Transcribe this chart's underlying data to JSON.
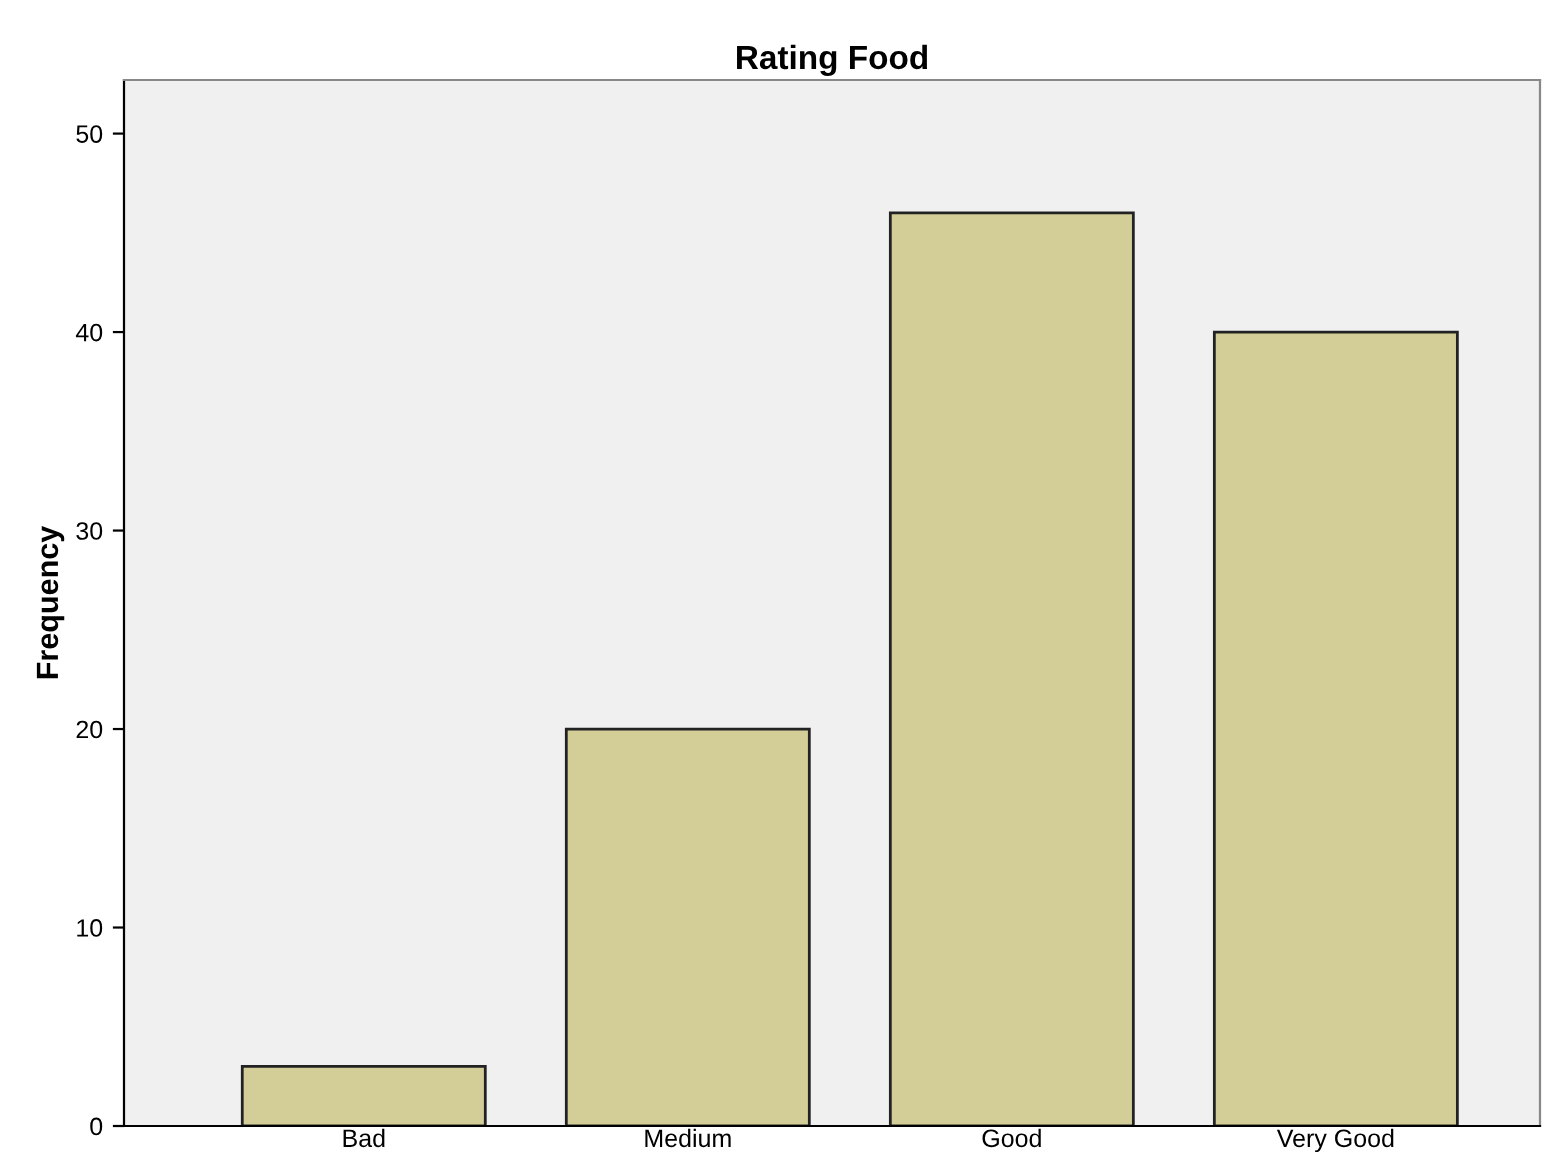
{
  "chart_data": {
    "type": "bar",
    "title": "Rating Food",
    "ylabel": "Frequency",
    "categories": [
      "Bad",
      "Medium",
      "Good",
      "Very Good"
    ],
    "values": [
      3,
      20,
      46,
      40
    ],
    "color": "#d3ce98",
    "ylim": [
      0,
      52.7
    ],
    "yticks": [
      0,
      10,
      20,
      30,
      40,
      50
    ],
    "grid": false,
    "legend": false
  }
}
